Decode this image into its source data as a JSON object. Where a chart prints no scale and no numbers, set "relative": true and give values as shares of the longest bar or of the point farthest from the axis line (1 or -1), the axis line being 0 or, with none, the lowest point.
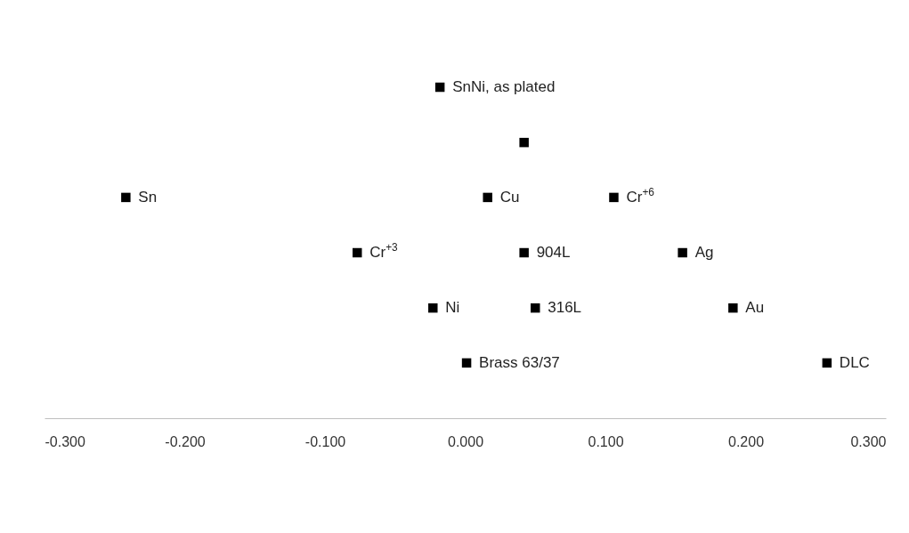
{
  "chart_data": {
    "type": "scatter",
    "relative": true,
    "marker": "square",
    "x": [
      -0.018,
      0.042,
      -0.242,
      0.016,
      0.106,
      -0.077,
      0.042,
      0.155,
      -0.023,
      0.05,
      0.191,
      0.001,
      0.258
    ],
    "series": [
      {
        "color": "#000000",
        "values": [
          1,
          0.833,
          0.667,
          0.667,
          0.667,
          0.5,
          0.5,
          0.5,
          0.333,
          0.333,
          0.333,
          0.167,
          0.167
        ]
      }
    ],
    "xlim": [
      -0.3,
      0.3
    ],
    "xticks": [
      {
        "value": -0.3,
        "label": "-0.300"
      },
      {
        "value": -0.2,
        "label": "-0.200"
      },
      {
        "value": -0.1,
        "label": "-0.100"
      },
      {
        "value": 0,
        "label": "0.000"
      },
      {
        "value": 0.1,
        "label": "0.100"
      },
      {
        "value": 0.2,
        "label": "0.200"
      },
      {
        "value": 0.3,
        "label": "0.300"
      }
    ],
    "annotations": [
      {
        "text": "SnNi, as plated",
        "x": -0.018,
        "y": 1
      },
      {
        "text": "Sn",
        "x": -0.242,
        "y": 0.667
      },
      {
        "text": "Cu",
        "x": 0.016,
        "y": 0.667
      },
      {
        "text": "Cr$^{+6}$",
        "x": 0.106,
        "y": 0.667
      },
      {
        "text": "Cr$^{+3}$",
        "x": -0.077,
        "y": 0.5
      },
      {
        "text": "904L",
        "x": 0.042,
        "y": 0.5
      },
      {
        "text": "Ag",
        "x": 0.155,
        "y": 0.5
      },
      {
        "text": "Ni",
        "x": -0.023,
        "y": 0.333
      },
      {
        "text": "316L",
        "x": 0.05,
        "y": 0.333
      },
      {
        "text": "Au",
        "x": 0.191,
        "y": 0.333
      },
      {
        "text": "Brass 63/37",
        "x": 0.001,
        "y": 0.167
      },
      {
        "text": "DLC",
        "x": 0.258,
        "y": 0.167
      }
    ]
  }
}
